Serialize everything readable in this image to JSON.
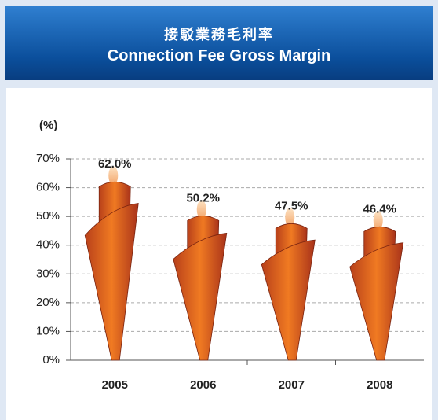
{
  "chart_data": {
    "type": "bar",
    "title": "接駁業務毛利率",
    "subtitle": "Connection Fee Gross Margin",
    "y_label": "(%)",
    "categories": [
      "2005",
      "2006",
      "2007",
      "2008"
    ],
    "values": [
      62.0,
      50.2,
      47.5,
      46.4
    ],
    "value_labels": [
      "62.0%",
      "50.2%",
      "47.5%",
      "46.4%"
    ],
    "color": "#f07a22",
    "ylim": [
      0,
      70
    ],
    "yticks": [
      {
        "value": 0,
        "label": "0%"
      },
      {
        "value": 10,
        "label": "10%"
      },
      {
        "value": 20,
        "label": "20%"
      },
      {
        "value": 30,
        "label": "30%"
      },
      {
        "value": 40,
        "label": "40%"
      },
      {
        "value": 50,
        "label": "50%"
      },
      {
        "value": 60,
        "label": "60%"
      },
      {
        "value": 70,
        "label": "70%"
      }
    ],
    "grid": true
  }
}
